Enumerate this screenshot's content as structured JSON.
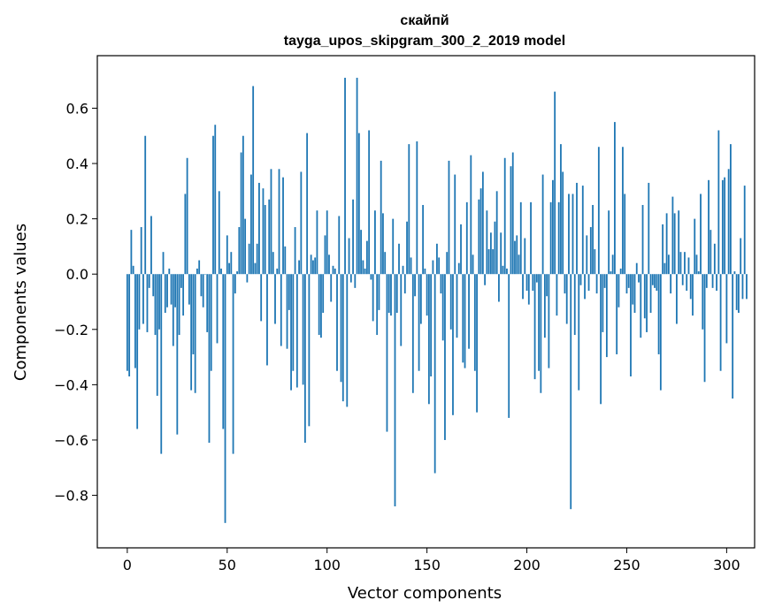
{
  "chart_data": {
    "type": "bar",
    "title": "скайпй",
    "subtitle": "tayga_upos_skipgram_300_2_2019 model",
    "xlabel": "Vector components",
    "ylabel": "Components values",
    "xlim": [
      -15,
      314
    ],
    "ylim": [
      -0.99,
      0.79
    ],
    "xticks": [
      0,
      50,
      100,
      150,
      200,
      250,
      300
    ],
    "xtick_labels": [
      "0",
      "50",
      "100",
      "150",
      "200",
      "250",
      "300"
    ],
    "yticks": [
      -0.8,
      -0.6,
      -0.4,
      -0.2,
      0.0,
      0.2,
      0.4,
      0.6
    ],
    "ytick_labels": [
      "−0.8",
      "−0.6",
      "−0.4",
      "−0.2",
      "0.0",
      "0.2",
      "0.4",
      "0.6"
    ],
    "bar_color": "#1f77b4",
    "grid": false,
    "values": [
      -0.35,
      -0.37,
      0.16,
      0.03,
      -0.34,
      -0.56,
      -0.2,
      0.17,
      -0.18,
      0.5,
      -0.21,
      -0.05,
      0.21,
      -0.08,
      -0.22,
      -0.44,
      -0.2,
      -0.65,
      0.08,
      -0.14,
      -0.12,
      0.02,
      -0.11,
      -0.26,
      -0.12,
      -0.58,
      -0.22,
      -0.05,
      -0.15,
      0.29,
      0.42,
      -0.11,
      -0.42,
      -0.29,
      -0.43,
      0.02,
      0.05,
      -0.08,
      -0.12,
      0.0,
      -0.21,
      -0.61,
      -0.35,
      0.5,
      0.54,
      -0.25,
      0.3,
      0.02,
      -0.56,
      -0.9,
      0.14,
      0.04,
      0.08,
      -0.65,
      -0.07,
      0.01,
      0.17,
      0.44,
      0.5,
      0.2,
      -0.03,
      0.11,
      0.36,
      0.68,
      0.04,
      0.11,
      0.33,
      -0.17,
      0.31,
      0.25,
      -0.33,
      0.27,
      0.38,
      0.08,
      -0.18,
      0.02,
      0.38,
      -0.26,
      0.35,
      0.1,
      -0.27,
      -0.13,
      -0.42,
      -0.35,
      0.17,
      -0.41,
      0.05,
      0.37,
      -0.4,
      -0.61,
      0.51,
      -0.55,
      0.07,
      0.05,
      0.06,
      0.23,
      -0.22,
      -0.23,
      -0.14,
      0.14,
      0.23,
      0.07,
      -0.1,
      0.03,
      0.02,
      -0.35,
      0.21,
      -0.39,
      -0.46,
      0.71,
      -0.48,
      0.13,
      -0.03,
      0.27,
      -0.05,
      0.71,
      0.51,
      0.16,
      0.05,
      0.02,
      0.12,
      0.52,
      -0.02,
      -0.17,
      0.23,
      -0.22,
      -0.13,
      0.41,
      0.22,
      0.08,
      -0.57,
      -0.14,
      -0.15,
      0.2,
      -0.84,
      -0.14,
      0.11,
      -0.26,
      0.03,
      -0.07,
      0.19,
      0.47,
      0.06,
      -0.43,
      -0.08,
      0.48,
      -0.35,
      -0.18,
      0.25,
      0.02,
      -0.15,
      -0.47,
      -0.37,
      0.05,
      -0.72,
      0.11,
      0.06,
      -0.07,
      -0.24,
      -0.6,
      0.08,
      0.41,
      -0.2,
      -0.51,
      0.36,
      -0.23,
      0.04,
      0.18,
      -0.32,
      -0.34,
      0.26,
      -0.27,
      0.43,
      0.07,
      -0.35,
      -0.5,
      0.27,
      0.31,
      0.37,
      -0.04,
      0.23,
      0.09,
      0.15,
      0.09,
      0.19,
      0.3,
      -0.1,
      0.15,
      0.03,
      0.42,
      0.02,
      -0.52,
      0.39,
      0.44,
      0.12,
      0.14,
      0.07,
      0.26,
      -0.09,
      0.13,
      -0.06,
      -0.11,
      0.26,
      -0.06,
      -0.38,
      -0.03,
      -0.35,
      -0.43,
      0.36,
      -0.23,
      -0.08,
      -0.34,
      0.26,
      0.34,
      0.66,
      -0.15,
      0.26,
      0.47,
      0.37,
      -0.07,
      -0.18,
      0.29,
      -0.85,
      0.29,
      -0.22,
      0.33,
      -0.42,
      -0.04,
      0.32,
      -0.09,
      0.14,
      -0.06,
      0.17,
      0.25,
      0.09,
      -0.07,
      0.46,
      -0.47,
      -0.21,
      -0.05,
      -0.3,
      0.23,
      0.01,
      0.07,
      0.55,
      -0.29,
      -0.12,
      0.02,
      0.46,
      0.29,
      -0.07,
      -0.05,
      -0.37,
      -0.11,
      -0.14,
      0.04,
      -0.03,
      -0.23,
      0.25,
      -0.16,
      -0.21,
      0.33,
      -0.14,
      -0.04,
      -0.05,
      -0.06,
      -0.29,
      -0.42,
      0.18,
      0.04,
      0.22,
      0.07,
      -0.07,
      0.28,
      0.22,
      -0.18,
      0.23,
      0.08,
      -0.04,
      0.08,
      -0.06,
      0.06,
      -0.09,
      -0.15,
      0.2,
      0.07,
      0.01,
      0.29,
      -0.2,
      -0.39,
      -0.05,
      0.34,
      0.16,
      -0.05,
      0.11,
      -0.06,
      0.52,
      -0.35,
      0.34,
      0.35,
      -0.25,
      0.38,
      0.47,
      -0.45,
      0.01,
      -0.13,
      -0.14,
      0.13,
      -0.09,
      0.32,
      -0.09
    ]
  }
}
